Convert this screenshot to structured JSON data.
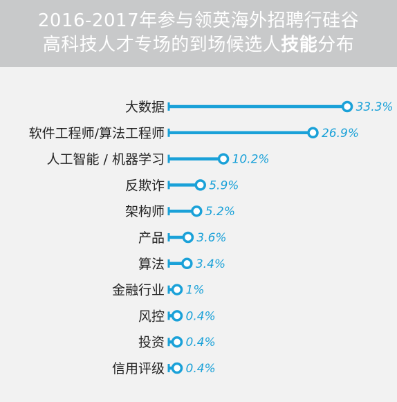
{
  "header": {
    "line1": "2016-2017年参与领英海外招聘行硅谷",
    "line2_prefix": "高科技人才专场的到场候选人",
    "line2_bold": "技能",
    "line2_suffix": "分布"
  },
  "colors": {
    "header_bg": "#c8c9ca",
    "background": "#f2f2f2",
    "bar": "#1aa1d8",
    "label": "#222222"
  },
  "chart_data": {
    "type": "bar",
    "orientation": "horizontal",
    "title": "2016-2017年参与领英海外招聘行硅谷高科技人才专场的到场候选人技能分布",
    "categories": [
      "大数据",
      "软件工程师/算法工程师",
      "人工智能 / 机器学习",
      "反欺诈",
      "架构师",
      "产品",
      "算法",
      "金融行业",
      "风控",
      "投资",
      "信用评级"
    ],
    "values": [
      33.3,
      26.9,
      10.2,
      5.9,
      5.2,
      3.6,
      3.4,
      1,
      0.4,
      0.4,
      0.4
    ],
    "value_labels": [
      "33.3%",
      "26.9%",
      "10.2%",
      "5.9%",
      "5.2%",
      "3.6%",
      "3.4%",
      "1%",
      "0.4%",
      "0.4%",
      "0.4%"
    ],
    "unit": "%",
    "grid": false,
    "legend": "none"
  }
}
